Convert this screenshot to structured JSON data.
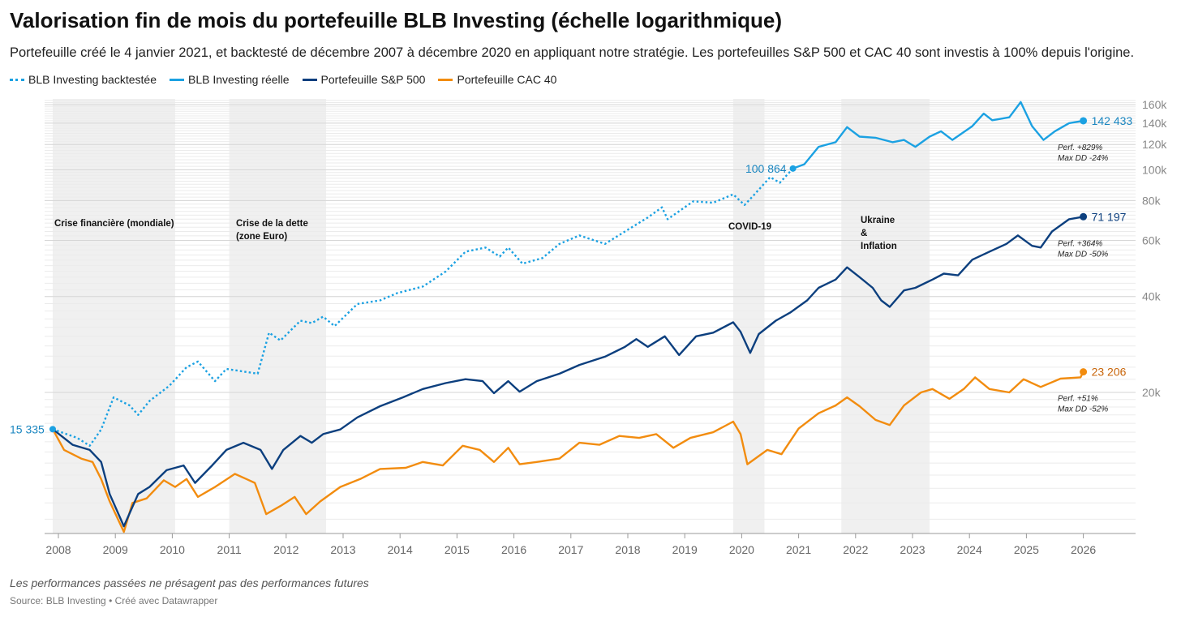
{
  "header": {
    "title": "Valorisation fin de mois du portefeuille BLB Investing (échelle logarithmique)",
    "subtitle": "Portefeuille créé le 4 janvier 2021, et backtesté de décembre 2007 à décembre 2020 en appliquant notre stratégie. Les portefeuilles S&P 500 et CAC 40 sont investis à 100% depuis l'origine."
  },
  "footer": {
    "note": "Les performances passées ne présagent pas des performances futures",
    "source": "Source: BLB Investing • Créé avec Datawrapper"
  },
  "chart_data": {
    "type": "line",
    "title": "Valorisation fin de mois du portefeuille BLB Investing (échelle logarithmique)",
    "yscale": "log",
    "ylim": [
      7200,
      167000
    ],
    "xlim": [
      2007.9,
      2026.05
    ],
    "x_ticks": [
      "2008",
      "2009",
      "2010",
      "2011",
      "2012",
      "2013",
      "2014",
      "2015",
      "2016",
      "2017",
      "2018",
      "2019",
      "2020",
      "2021",
      "2022",
      "2023",
      "2024",
      "2025",
      "2026"
    ],
    "y_ticks": [
      {
        "v": 20000,
        "label": "20k"
      },
      {
        "v": 40000,
        "label": "40k"
      },
      {
        "v": 60000,
        "label": "60k"
      },
      {
        "v": 80000,
        "label": "80k"
      },
      {
        "v": 100000,
        "label": "100k"
      },
      {
        "v": 120000,
        "label": "120k"
      },
      {
        "v": 140000,
        "label": "140k"
      },
      {
        "v": 160000,
        "label": "160k"
      }
    ],
    "legend_position": "top-left",
    "start_label": "15 335",
    "shaded_periods": [
      {
        "from": 2007.9,
        "to": 2010.05,
        "label": [
          "Crise financière (mondiale)"
        ]
      },
      {
        "from": 2011.0,
        "to": 2012.7,
        "label": [
          "Crise de la dette",
          "(zone Euro)"
        ]
      },
      {
        "from": 2019.85,
        "to": 2020.4,
        "label": [
          "COVID-19"
        ]
      },
      {
        "from": 2021.75,
        "to": 2023.3,
        "label": [
          "Ukraine",
          "&",
          "Inflation"
        ]
      }
    ],
    "series": [
      {
        "name": "BLB Investing backtestée",
        "color": "#1ba1e2",
        "dashed": true,
        "points": [
          [
            2007.9,
            15335
          ],
          [
            2008.33,
            14400
          ],
          [
            2008.55,
            13600
          ],
          [
            2008.75,
            15300
          ],
          [
            2008.97,
            19300
          ],
          [
            2009.25,
            18200
          ],
          [
            2009.4,
            17000
          ],
          [
            2009.6,
            18800
          ],
          [
            2009.95,
            21000
          ],
          [
            2010.25,
            24000
          ],
          [
            2010.45,
            25000
          ],
          [
            2010.75,
            21700
          ],
          [
            2010.95,
            23700
          ],
          [
            2011.5,
            22900
          ],
          [
            2011.7,
            30800
          ],
          [
            2011.9,
            29100
          ],
          [
            2012.25,
            33600
          ],
          [
            2012.45,
            33000
          ],
          [
            2012.65,
            34600
          ],
          [
            2012.85,
            32300
          ],
          [
            2013.25,
            37900
          ],
          [
            2013.65,
            38900
          ],
          [
            2013.95,
            41000
          ],
          [
            2014.4,
            43000
          ],
          [
            2014.8,
            47900
          ],
          [
            2015.15,
            55300
          ],
          [
            2015.5,
            57000
          ],
          [
            2015.75,
            53400
          ],
          [
            2015.9,
            57000
          ],
          [
            2016.15,
            50700
          ],
          [
            2016.5,
            52800
          ],
          [
            2016.8,
            58500
          ],
          [
            2017.15,
            62200
          ],
          [
            2017.6,
            58500
          ],
          [
            2017.95,
            64000
          ],
          [
            2018.35,
            70800
          ],
          [
            2018.6,
            76200
          ],
          [
            2018.7,
            69900
          ],
          [
            2019.15,
            79600
          ],
          [
            2019.5,
            78800
          ],
          [
            2019.85,
            83700
          ],
          [
            2020.05,
            77500
          ],
          [
            2020.2,
            82700
          ],
          [
            2020.5,
            94800
          ],
          [
            2020.67,
            91000
          ],
          [
            2020.9,
            100864
          ]
        ],
        "end_label": "100 864",
        "end_marker": true
      },
      {
        "name": "BLB Investing réelle",
        "color": "#1ba1e2",
        "dashed": false,
        "points": [
          [
            2020.9,
            100864
          ],
          [
            2021.1,
            104000
          ],
          [
            2021.35,
            118000
          ],
          [
            2021.65,
            122000
          ],
          [
            2021.85,
            136000
          ],
          [
            2022.07,
            127000
          ],
          [
            2022.35,
            126000
          ],
          [
            2022.65,
            122000
          ],
          [
            2022.85,
            124000
          ],
          [
            2023.05,
            118000
          ],
          [
            2023.3,
            127000
          ],
          [
            2023.5,
            132000
          ],
          [
            2023.7,
            124000
          ],
          [
            2024.05,
            137000
          ],
          [
            2024.25,
            150000
          ],
          [
            2024.4,
            143000
          ],
          [
            2024.7,
            146000
          ],
          [
            2024.9,
            163000
          ],
          [
            2025.1,
            137000
          ],
          [
            2025.3,
            124000
          ],
          [
            2025.5,
            132000
          ],
          [
            2025.75,
            140000
          ],
          [
            2026.0,
            142433
          ]
        ],
        "end_label": "142 433",
        "label_color": "#1a86c0",
        "perf": "Perf. +829%",
        "max_dd": "Max DD -24%"
      },
      {
        "name": "Portefeuille S&P 500",
        "color": "#0c3f7e",
        "dashed": false,
        "points": [
          [
            2007.9,
            15335
          ],
          [
            2008.25,
            13700
          ],
          [
            2008.55,
            13200
          ],
          [
            2008.75,
            12100
          ],
          [
            2008.9,
            9600
          ],
          [
            2009.15,
            7600
          ],
          [
            2009.4,
            9600
          ],
          [
            2009.6,
            10100
          ],
          [
            2009.9,
            11400
          ],
          [
            2010.2,
            11800
          ],
          [
            2010.4,
            10400
          ],
          [
            2010.7,
            11800
          ],
          [
            2010.95,
            13200
          ],
          [
            2011.25,
            13900
          ],
          [
            2011.55,
            13200
          ],
          [
            2011.75,
            11500
          ],
          [
            2011.95,
            13200
          ],
          [
            2012.25,
            14600
          ],
          [
            2012.45,
            13900
          ],
          [
            2012.65,
            14800
          ],
          [
            2012.95,
            15300
          ],
          [
            2013.25,
            16700
          ],
          [
            2013.65,
            18100
          ],
          [
            2014.05,
            19300
          ],
          [
            2014.4,
            20500
          ],
          [
            2014.8,
            21400
          ],
          [
            2015.15,
            22000
          ],
          [
            2015.45,
            21700
          ],
          [
            2015.65,
            19900
          ],
          [
            2015.9,
            21700
          ],
          [
            2016.1,
            20100
          ],
          [
            2016.4,
            21700
          ],
          [
            2016.8,
            22900
          ],
          [
            2017.15,
            24400
          ],
          [
            2017.6,
            25900
          ],
          [
            2017.95,
            27800
          ],
          [
            2018.15,
            29400
          ],
          [
            2018.35,
            27800
          ],
          [
            2018.65,
            30000
          ],
          [
            2018.9,
            26200
          ],
          [
            2019.2,
            30000
          ],
          [
            2019.5,
            30800
          ],
          [
            2019.85,
            33200
          ],
          [
            2019.98,
            31000
          ],
          [
            2020.15,
            26600
          ],
          [
            2020.3,
            30500
          ],
          [
            2020.6,
            33600
          ],
          [
            2020.85,
            35600
          ],
          [
            2021.15,
            38900
          ],
          [
            2021.35,
            42600
          ],
          [
            2021.65,
            45200
          ],
          [
            2021.85,
            49400
          ],
          [
            2022.07,
            46000
          ],
          [
            2022.3,
            42600
          ],
          [
            2022.45,
            38900
          ],
          [
            2022.6,
            37100
          ],
          [
            2022.85,
            41800
          ],
          [
            2023.05,
            42600
          ],
          [
            2023.35,
            45200
          ],
          [
            2023.55,
            47200
          ],
          [
            2023.8,
            46600
          ],
          [
            2024.05,
            52200
          ],
          [
            2024.35,
            55300
          ],
          [
            2024.65,
            58500
          ],
          [
            2024.85,
            62200
          ],
          [
            2025.1,
            57700
          ],
          [
            2025.25,
            57000
          ],
          [
            2025.45,
            64000
          ],
          [
            2025.75,
            69900
          ],
          [
            2026.0,
            71197
          ]
        ],
        "end_label": "71 197",
        "label_color": "#0c3f7e",
        "perf": "Perf. +364%",
        "max_dd": "Max DD -50%"
      },
      {
        "name": "Portefeuille CAC 40",
        "color": "#f28c0f",
        "dashed": false,
        "points": [
          [
            2007.9,
            15335
          ],
          [
            2008.1,
            13200
          ],
          [
            2008.4,
            12400
          ],
          [
            2008.6,
            12100
          ],
          [
            2008.75,
            10700
          ],
          [
            2008.9,
            9100
          ],
          [
            2009.15,
            7300
          ],
          [
            2009.3,
            9000
          ],
          [
            2009.55,
            9300
          ],
          [
            2009.85,
            10600
          ],
          [
            2010.05,
            10100
          ],
          [
            2010.25,
            10700
          ],
          [
            2010.45,
            9400
          ],
          [
            2010.75,
            10100
          ],
          [
            2011.1,
            11100
          ],
          [
            2011.3,
            10700
          ],
          [
            2011.45,
            10400
          ],
          [
            2011.65,
            8300
          ],
          [
            2011.9,
            8800
          ],
          [
            2012.15,
            9400
          ],
          [
            2012.35,
            8300
          ],
          [
            2012.6,
            9100
          ],
          [
            2012.95,
            10100
          ],
          [
            2013.3,
            10700
          ],
          [
            2013.65,
            11500
          ],
          [
            2014.1,
            11600
          ],
          [
            2014.4,
            12100
          ],
          [
            2014.75,
            11800
          ],
          [
            2015.1,
            13600
          ],
          [
            2015.4,
            13200
          ],
          [
            2015.65,
            12100
          ],
          [
            2015.9,
            13400
          ],
          [
            2016.1,
            11900
          ],
          [
            2016.4,
            12100
          ],
          [
            2016.8,
            12400
          ],
          [
            2017.15,
            13900
          ],
          [
            2017.5,
            13700
          ],
          [
            2017.85,
            14600
          ],
          [
            2018.2,
            14400
          ],
          [
            2018.5,
            14800
          ],
          [
            2018.8,
            13400
          ],
          [
            2019.1,
            14400
          ],
          [
            2019.5,
            15000
          ],
          [
            2019.85,
            16200
          ],
          [
            2019.98,
            14800
          ],
          [
            2020.1,
            11900
          ],
          [
            2020.45,
            13200
          ],
          [
            2020.7,
            12800
          ],
          [
            2021.0,
            15400
          ],
          [
            2021.35,
            17200
          ],
          [
            2021.65,
            18200
          ],
          [
            2021.85,
            19300
          ],
          [
            2022.07,
            18100
          ],
          [
            2022.35,
            16400
          ],
          [
            2022.6,
            15800
          ],
          [
            2022.85,
            18200
          ],
          [
            2023.15,
            20000
          ],
          [
            2023.35,
            20500
          ],
          [
            2023.65,
            19100
          ],
          [
            2023.9,
            20500
          ],
          [
            2024.1,
            22300
          ],
          [
            2024.35,
            20500
          ],
          [
            2024.7,
            20000
          ],
          [
            2024.95,
            22000
          ],
          [
            2025.25,
            20800
          ],
          [
            2025.6,
            22100
          ],
          [
            2025.95,
            22300
          ],
          [
            2026.0,
            23206
          ]
        ],
        "end_label": "23 206",
        "label_color": "#c8650a",
        "perf": "Perf. +51%",
        "max_dd": "Max DD -52%"
      }
    ]
  }
}
